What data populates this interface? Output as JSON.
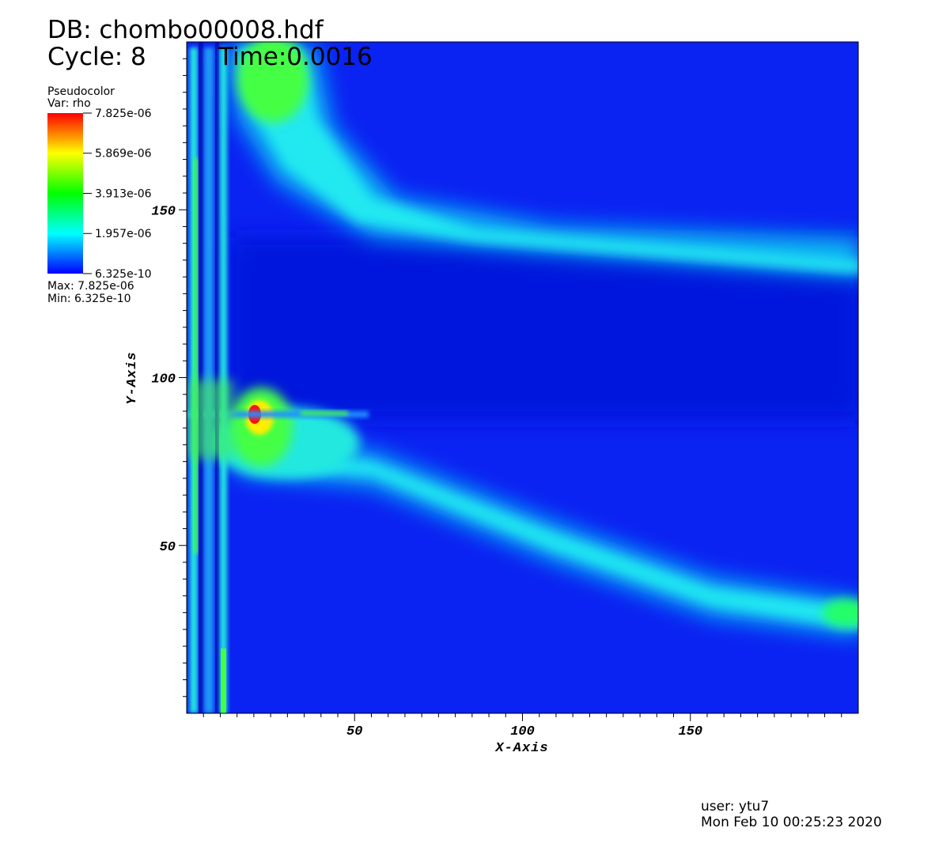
{
  "chart_data": {
    "type": "heatmap",
    "title": "DB: chombo00008.hdf",
    "cycle": "Cycle: 8",
    "time": "Time:0.0016",
    "x_label": "X-Axis",
    "y_label": "Y-Axis",
    "xlim": [
      0,
      200
    ],
    "ylim": [
      0,
      200
    ],
    "xticks": [
      50,
      100,
      150
    ],
    "yticks": [
      50,
      100,
      150
    ],
    "xticks_minor": [
      5,
      10,
      15,
      20,
      25,
      30,
      35,
      40,
      45,
      55,
      60,
      65,
      70,
      75,
      80,
      85,
      90,
      95,
      105,
      110,
      115,
      120,
      125,
      130,
      135,
      140,
      145,
      155,
      160,
      165,
      170,
      175,
      180,
      185,
      190,
      195
    ],
    "yticks_minor": [
      5,
      10,
      15,
      20,
      25,
      30,
      35,
      40,
      45,
      55,
      60,
      65,
      70,
      75,
      80,
      85,
      90,
      95,
      105,
      110,
      115,
      120,
      125,
      130,
      135,
      140,
      145,
      155,
      160,
      165,
      170,
      175,
      180,
      185,
      190,
      195
    ],
    "legend": {
      "title": "Pseudocolor",
      "variable": "Var: rho",
      "clim": [
        6.325e-10,
        7.825e-06
      ],
      "ticks": [
        {
          "value": 7.825e-06,
          "label": "7.825e-06"
        },
        {
          "value": 5.869e-06,
          "label": "5.869e-06"
        },
        {
          "value": 3.913e-06,
          "label": "3.913e-06"
        },
        {
          "value": 1.957e-06,
          "label": "1.957e-06"
        },
        {
          "value": 6.325e-10,
          "label": "6.325e-10"
        }
      ],
      "max": "Max:  7.825e-06",
      "min": "Min:  6.325e-10"
    },
    "user": "user: ytu7",
    "date": "Mon Feb 10 00:25:23 2020"
  }
}
